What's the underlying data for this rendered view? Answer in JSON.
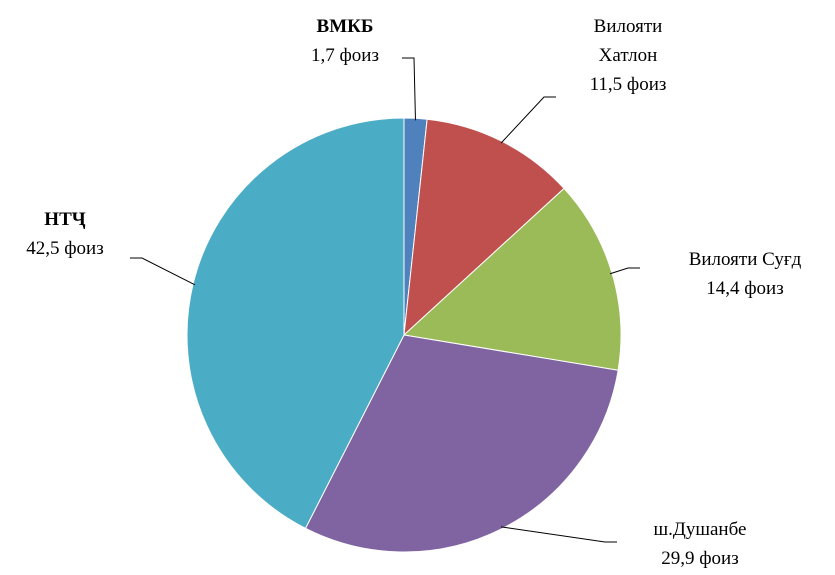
{
  "chart_data": {
    "type": "pie",
    "categories": [
      "ВМКБ",
      "Вилояти Хатлон",
      "Вилояти Суғд",
      "ш.Душанбе",
      "НТҶ"
    ],
    "values": [
      1.7,
      11.5,
      14.4,
      29.9,
      42.5
    ],
    "value_labels": [
      "1,7 фоиз",
      "11,5 фоиз",
      "14,4 фоиз",
      "29,9 фоиз",
      "42,5 фоиз"
    ],
    "colors": [
      "#4f81bd",
      "#c0504d",
      "#9bbb59",
      "#8064a2",
      "#4bacc6"
    ]
  }
}
